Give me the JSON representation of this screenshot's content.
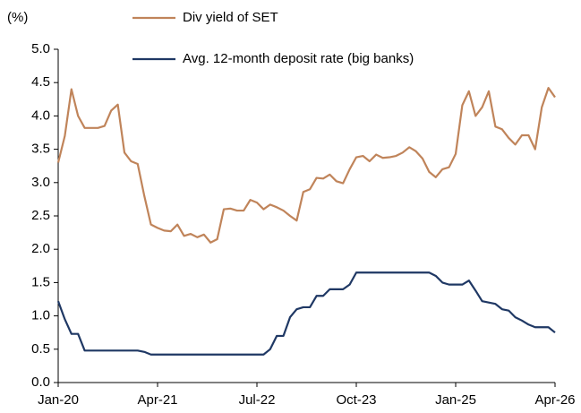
{
  "chart_data": {
    "type": "line",
    "y_label": "(%)",
    "categories": [
      "Jan-20",
      null,
      null,
      null,
      null,
      null,
      null,
      null,
      null,
      null,
      null,
      null,
      null,
      null,
      null,
      "Apr-21",
      null,
      null,
      null,
      null,
      null,
      null,
      null,
      null,
      null,
      null,
      null,
      null,
      null,
      null,
      "Jul-22",
      null,
      null,
      null,
      null,
      null,
      null,
      null,
      null,
      null,
      null,
      null,
      null,
      null,
      null,
      "Oct-23",
      null,
      null,
      null,
      null,
      null,
      null,
      null,
      null,
      null,
      null,
      null,
      null,
      null,
      null,
      "Jan-25",
      null,
      null,
      null,
      null,
      null,
      null,
      null,
      null,
      null,
      null,
      null,
      null,
      null,
      null,
      "Apr-26"
    ],
    "series": [
      {
        "name": "Div yield of SET",
        "color": "#c0845a",
        "values": [
          3.3,
          3.7,
          4.4,
          4.0,
          3.82,
          3.82,
          3.82,
          3.85,
          4.08,
          4.17,
          3.45,
          3.32,
          3.28,
          2.8,
          2.37,
          2.32,
          2.28,
          2.27,
          2.37,
          2.2,
          2.23,
          2.18,
          2.22,
          2.1,
          2.15,
          2.6,
          2.61,
          2.58,
          2.58,
          2.74,
          2.7,
          2.6,
          2.67,
          2.63,
          2.58,
          2.5,
          2.43,
          2.86,
          2.9,
          3.07,
          3.06,
          3.12,
          3.02,
          2.99,
          3.2,
          3.38,
          3.4,
          3.32,
          3.42,
          3.37,
          3.38,
          3.4,
          3.45,
          3.53,
          3.47,
          3.36,
          3.16,
          3.08,
          3.2,
          3.23,
          3.43,
          4.16,
          4.37,
          4.0,
          4.13,
          4.37,
          3.84,
          3.8,
          3.67,
          3.57,
          3.71,
          3.71,
          3.5,
          4.13,
          4.42,
          4.28
        ]
      },
      {
        "name": "Avg. 12-month deposit rate (big banks)",
        "color": "#1f3864",
        "values": [
          1.22,
          0.95,
          0.73,
          0.73,
          0.48,
          0.48,
          0.48,
          0.48,
          0.48,
          0.48,
          0.48,
          0.48,
          0.48,
          0.46,
          0.42,
          0.42,
          0.42,
          0.42,
          0.42,
          0.42,
          0.42,
          0.42,
          0.42,
          0.42,
          0.42,
          0.42,
          0.42,
          0.42,
          0.42,
          0.42,
          0.42,
          0.42,
          0.5,
          0.7,
          0.7,
          0.98,
          1.1,
          1.13,
          1.13,
          1.3,
          1.3,
          1.4,
          1.4,
          1.4,
          1.47,
          1.65,
          1.65,
          1.65,
          1.65,
          1.65,
          1.65,
          1.65,
          1.65,
          1.65,
          1.65,
          1.65,
          1.65,
          1.6,
          1.5,
          1.47,
          1.47,
          1.47,
          1.53,
          1.38,
          1.22,
          1.2,
          1.18,
          1.1,
          1.08,
          0.98,
          0.93,
          0.87,
          0.83,
          0.83,
          0.83,
          0.75
        ]
      }
    ],
    "ylim": [
      0,
      5
    ],
    "yticks": [
      {
        "value": 0,
        "label": "0.0"
      },
      {
        "value": 0.5,
        "label": "0.5"
      },
      {
        "value": 1,
        "label": "1.0"
      },
      {
        "value": 1.5,
        "label": "1.5"
      },
      {
        "value": 2,
        "label": "2.0"
      },
      {
        "value": 2.5,
        "label": "2.5"
      },
      {
        "value": 3,
        "label": "3.0"
      },
      {
        "value": 3.5,
        "label": "3.5"
      },
      {
        "value": 4,
        "label": "4.0"
      },
      {
        "value": 4.5,
        "label": "4.5"
      },
      {
        "value": 5,
        "label": "5.0"
      }
    ],
    "grid": false
  }
}
